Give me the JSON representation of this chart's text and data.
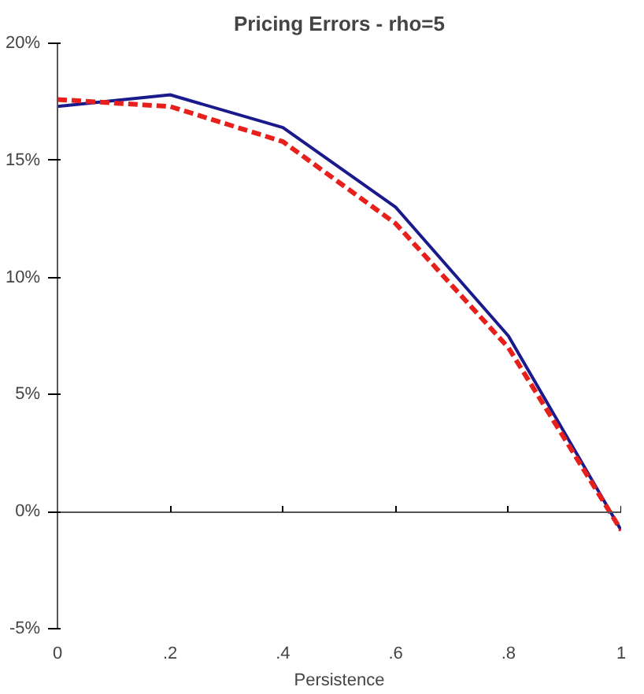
{
  "chart_data": {
    "type": "line",
    "title": "Pricing Errors - rho=5",
    "xlabel": "Persistence",
    "x": [
      0,
      0.2,
      0.4,
      0.6,
      0.8,
      1
    ],
    "series": [
      {
        "color": "#1a1a8c",
        "values": [
          17.3,
          17.8,
          16.4,
          13.0,
          7.5,
          -0.8
        ],
        "line_style": "solid"
      },
      {
        "color": "#e8201c",
        "values": [
          17.6,
          17.3,
          15.8,
          12.3,
          7.0,
          -0.8
        ],
        "line_style": "dashed"
      }
    ],
    "xlim": [
      0,
      1
    ],
    "ylim": [
      -5,
      20
    ],
    "xticks": [
      0,
      {
        "value": 0.2,
        "label": ".2"
      },
      {
        "value": 0.4,
        "label": ".4"
      },
      {
        "value": 0.6,
        "label": ".6"
      },
      {
        "value": 0.8,
        "label": ".8"
      },
      1
    ],
    "yticks": [
      {
        "value": -5,
        "label": "-5%"
      },
      {
        "value": 0,
        "label": "0%"
      },
      {
        "value": 5,
        "label": "5%"
      },
      {
        "value": 10,
        "label": "10%"
      },
      {
        "value": 15,
        "label": "15%"
      },
      {
        "value": 20,
        "label": "20%"
      }
    ],
    "tick_labels": true
  }
}
